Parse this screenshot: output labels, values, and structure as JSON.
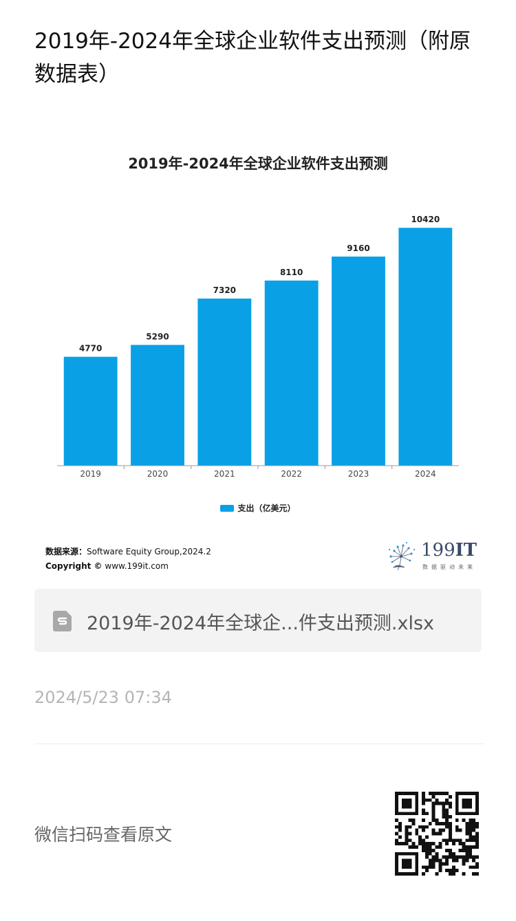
{
  "article": {
    "title": "2019年-2024年全球企业软件支出预测（附原数据表）"
  },
  "chart_data": {
    "type": "bar",
    "title": "2019年-2024年全球企业软件支出预测",
    "categories": [
      "2019",
      "2020",
      "2021",
      "2022",
      "2023",
      "2024"
    ],
    "series": [
      {
        "name": "支出（亿美元）",
        "values": [
          4770,
          5290,
          7320,
          8110,
          9160,
          10420
        ]
      }
    ],
    "data_labels": [
      "4770",
      "5290",
      "7320",
      "8110",
      "9160",
      "10420"
    ],
    "ylim": [
      0,
      11000
    ],
    "grid": false,
    "legend_position": "bottom",
    "bar_color": "#0aa0e6"
  },
  "source": {
    "label": "数据来源：",
    "text": "Software Equity Group,2024.2",
    "copyright_label": "Copyright ©",
    "copyright_text": "www.199it.com"
  },
  "brand": {
    "logo_number": "199",
    "logo_suffix": "IT",
    "slogan": "数据驱动未来"
  },
  "attachment": {
    "file_name": "2019年-2024年全球企...件支出预测.xlsx",
    "icon": "spreadsheet-file-icon"
  },
  "meta": {
    "timestamp": "2024/5/23 07:34"
  },
  "footer": {
    "scan_text": "微信扫码查看原文",
    "qr_icon": "qr-code-icon"
  }
}
